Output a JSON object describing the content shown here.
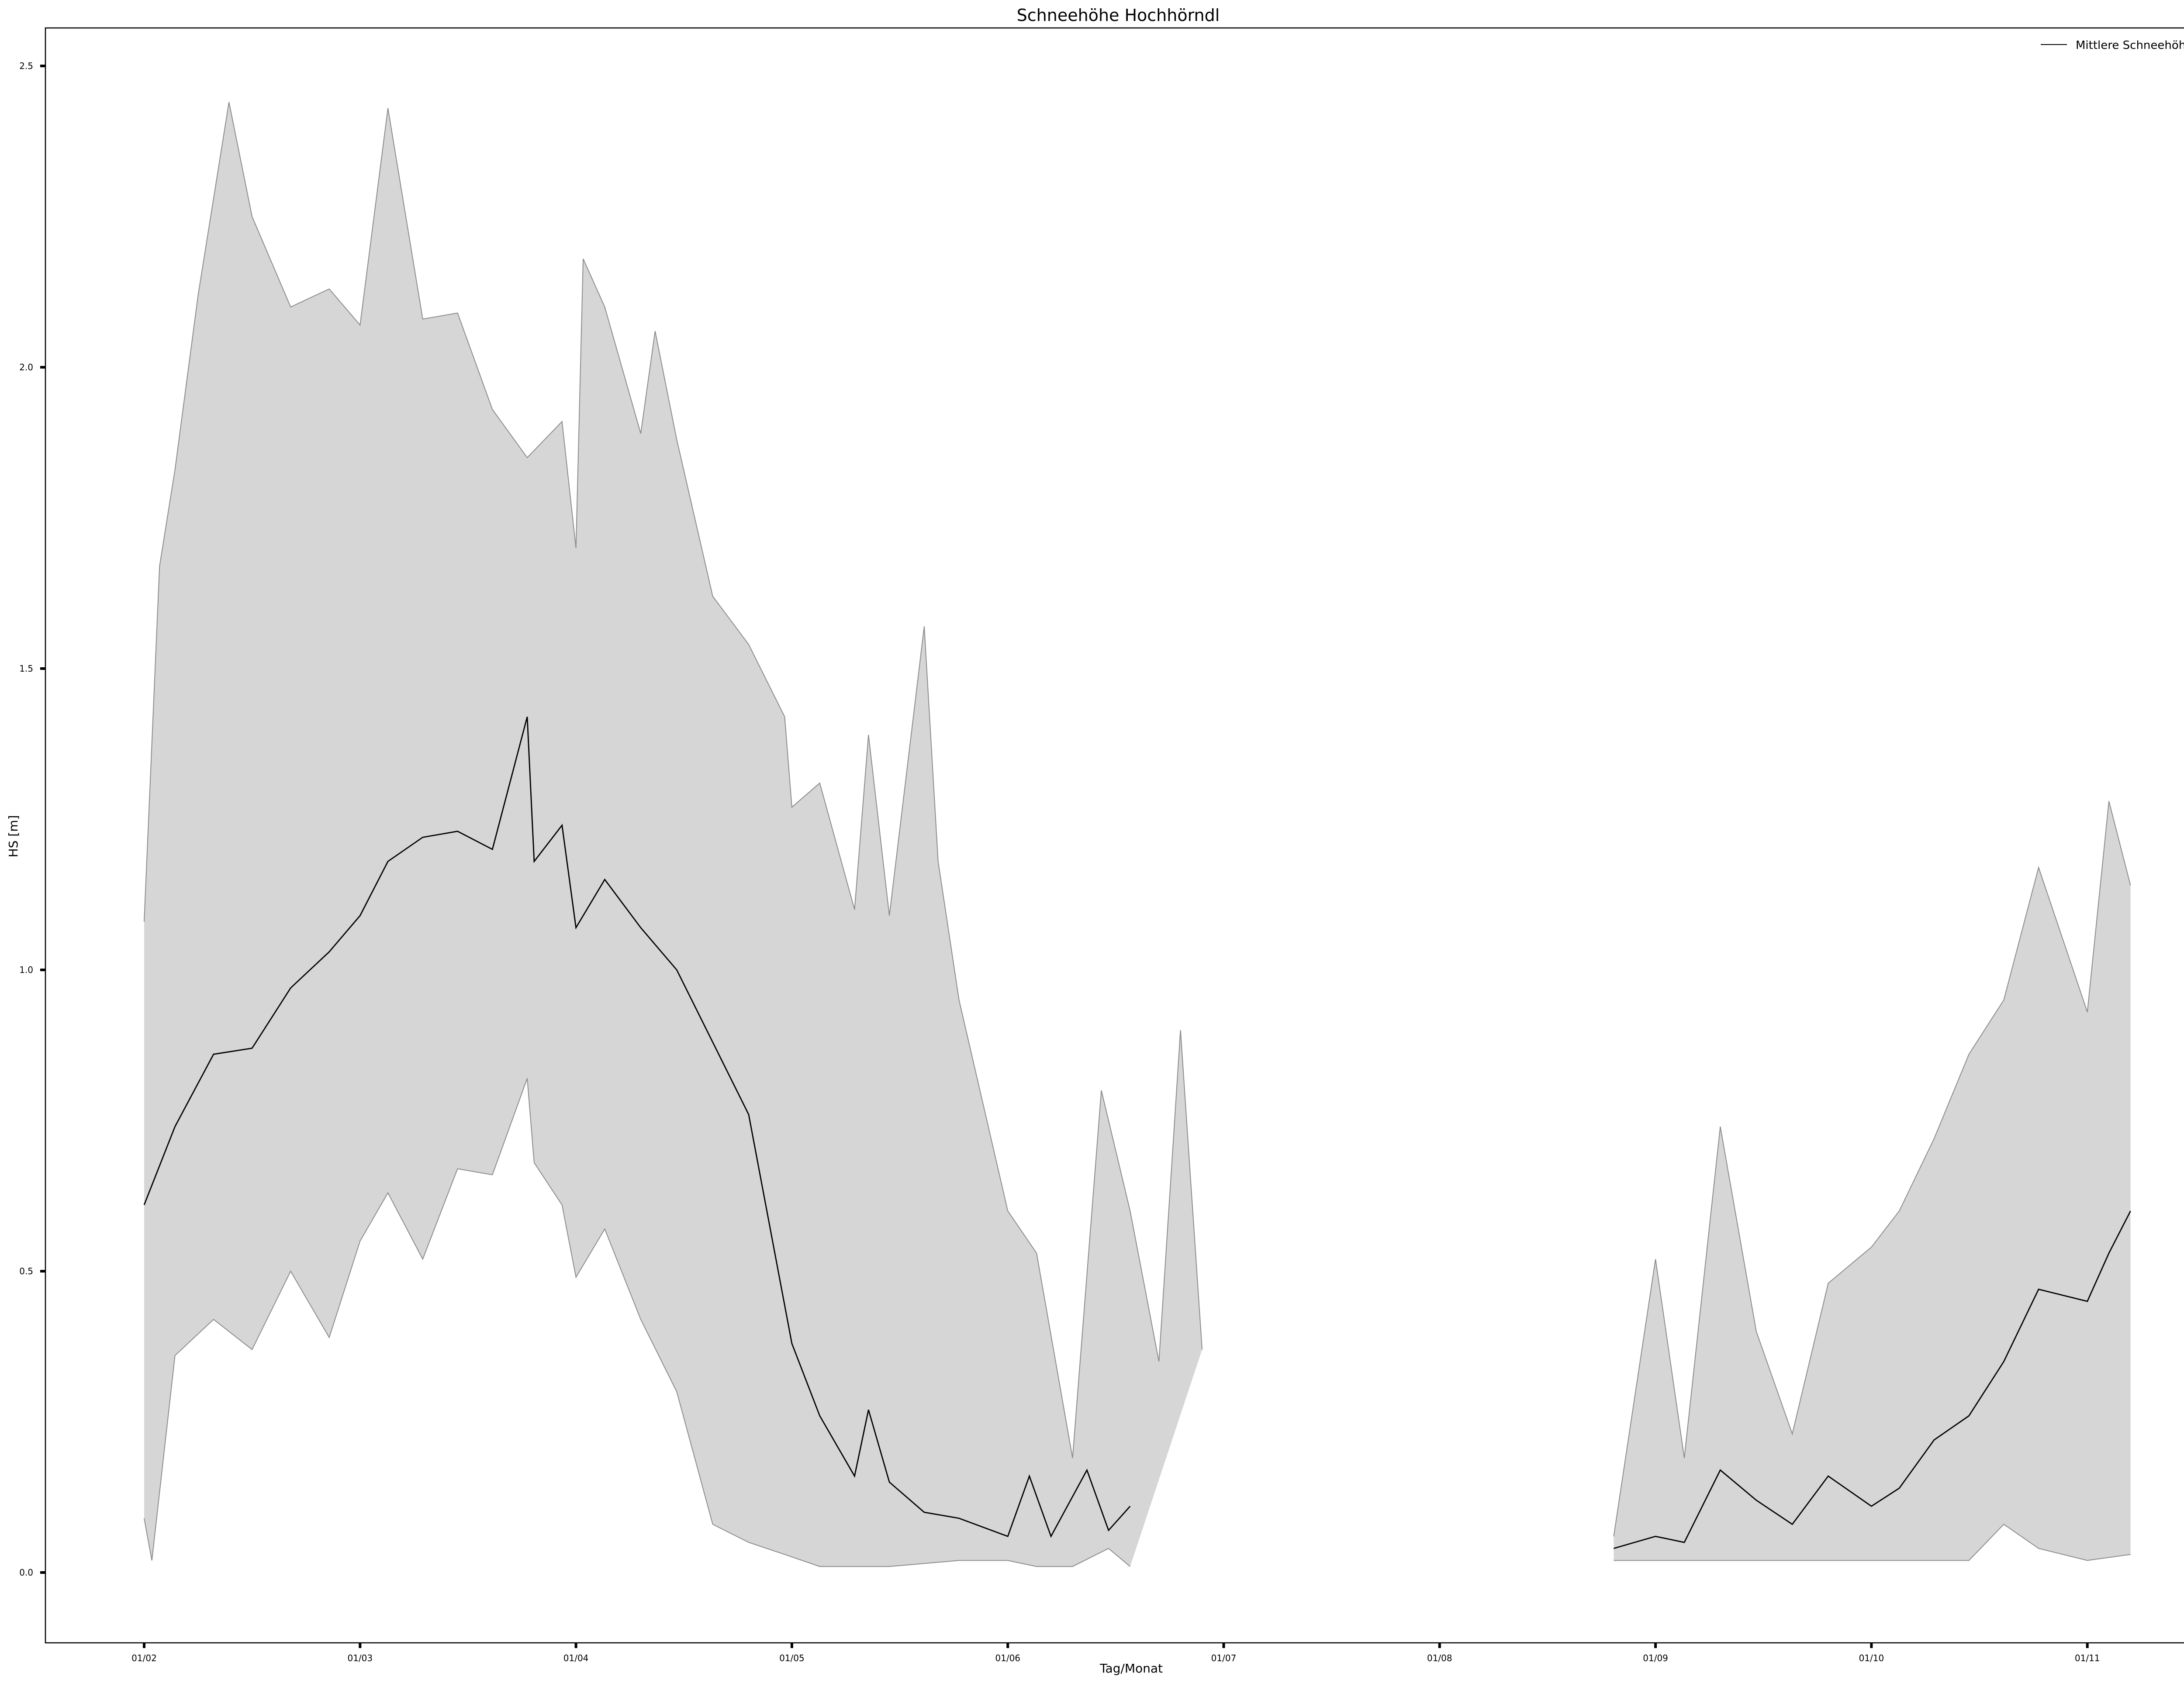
{
  "chart_data": {
    "type": "area",
    "title": "Schneehöhe  Hochhörndl",
    "xlabel": "Tag/Monat",
    "ylabel": "HS [m]",
    "ylim": [
      -0.12,
      2.6
    ],
    "xlim": [
      "01/01",
      "18/11"
    ],
    "x_ticks": [
      "01/02",
      "01/03",
      "01/04",
      "01/05",
      "01/06",
      "01/07",
      "01/08",
      "01/09",
      "01/10",
      "01/11"
    ],
    "y_ticks": [
      "0.0",
      "0.5",
      "1.0",
      "1.5",
      "2.0",
      "2.5"
    ],
    "legend": {
      "entries": [
        "Mittlere Schneehöhe"
      ],
      "position": "top-right"
    },
    "grid": false,
    "colors": {
      "mean_line": "#000000",
      "band_fill": "#d6d6d6",
      "band_edge": "#8c8c8c"
    },
    "series": [
      {
        "name": "Mittlere Schneehöhe",
        "role": "mean",
        "points": [
          [
            "01/02",
            0.61
          ],
          [
            "05/02",
            0.74
          ],
          [
            "10/02",
            0.86
          ],
          [
            "15/02",
            0.87
          ],
          [
            "20/02",
            0.97
          ],
          [
            "25/02",
            1.03
          ],
          [
            "01/03",
            1.09
          ],
          [
            "05/03",
            1.18
          ],
          [
            "10/03",
            1.22
          ],
          [
            "15/03",
            1.23
          ],
          [
            "20/03",
            1.2
          ],
          [
            "25/03",
            1.42
          ],
          [
            "26/03",
            1.18
          ],
          [
            "30/03",
            1.24
          ],
          [
            "01/04",
            1.07
          ],
          [
            "05/04",
            1.15
          ],
          [
            "10/04",
            1.07
          ],
          [
            "15/04",
            1.0
          ],
          [
            "20/04",
            0.88
          ],
          [
            "25/04",
            0.76
          ],
          [
            "01/05",
            0.38
          ],
          [
            "05/05",
            0.26
          ],
          [
            "10/05",
            0.16
          ],
          [
            "12/05",
            0.27
          ],
          [
            "15/05",
            0.15
          ],
          [
            "20/05",
            0.1
          ],
          [
            "25/05",
            0.09
          ],
          [
            "01/06",
            0.06
          ],
          [
            "04/06",
            0.16
          ],
          [
            "07/06",
            0.06
          ],
          [
            "12/06",
            0.17
          ],
          [
            "15/06",
            0.07
          ],
          [
            "18/06",
            0.11
          ],
          [
            "26/08",
            0.04
          ],
          [
            "01/09",
            0.06
          ],
          [
            "05/09",
            0.05
          ],
          [
            "10/09",
            0.17
          ],
          [
            "15/09",
            0.12
          ],
          [
            "20/09",
            0.08
          ],
          [
            "25/09",
            0.16
          ],
          [
            "01/10",
            0.11
          ],
          [
            "05/10",
            0.14
          ],
          [
            "10/10",
            0.22
          ],
          [
            "15/10",
            0.26
          ],
          [
            "20/10",
            0.35
          ],
          [
            "25/10",
            0.47
          ],
          [
            "01/11",
            0.45
          ],
          [
            "04/11",
            0.53
          ],
          [
            "07/11",
            0.6
          ]
        ]
      },
      {
        "name": "",
        "role": "band_upper",
        "points": [
          [
            "01/02",
            1.08
          ],
          [
            "03/02",
            1.67
          ],
          [
            "05/02",
            1.83
          ],
          [
            "08/02",
            2.12
          ],
          [
            "12/02",
            2.44
          ],
          [
            "15/02",
            2.25
          ],
          [
            "20/02",
            2.1
          ],
          [
            "25/02",
            2.13
          ],
          [
            "01/03",
            2.07
          ],
          [
            "05/03",
            2.43
          ],
          [
            "10/03",
            2.08
          ],
          [
            "15/03",
            2.09
          ],
          [
            "20/03",
            1.93
          ],
          [
            "25/03",
            1.85
          ],
          [
            "30/03",
            1.91
          ],
          [
            "01/04",
            1.7
          ],
          [
            "02/04",
            2.18
          ],
          [
            "05/04",
            2.1
          ],
          [
            "10/04",
            1.89
          ],
          [
            "12/04",
            2.06
          ],
          [
            "15/04",
            1.88
          ],
          [
            "20/04",
            1.62
          ],
          [
            "25/04",
            1.54
          ],
          [
            "30/04",
            1.42
          ],
          [
            "01/05",
            1.27
          ],
          [
            "05/05",
            1.31
          ],
          [
            "10/05",
            1.1
          ],
          [
            "12/05",
            1.39
          ],
          [
            "15/05",
            1.09
          ],
          [
            "20/05",
            1.57
          ],
          [
            "22/05",
            1.18
          ],
          [
            "25/05",
            0.95
          ],
          [
            "01/06",
            0.6
          ],
          [
            "05/06",
            0.53
          ],
          [
            "10/06",
            0.19
          ],
          [
            "14/06",
            0.8
          ],
          [
            "18/06",
            0.6
          ],
          [
            "22/06",
            0.35
          ],
          [
            "25/06",
            0.9
          ],
          [
            "28/06",
            0.37
          ],
          [
            "26/08",
            0.06
          ],
          [
            "01/09",
            0.52
          ],
          [
            "05/09",
            0.19
          ],
          [
            "10/09",
            0.74
          ],
          [
            "15/09",
            0.4
          ],
          [
            "20/09",
            0.23
          ],
          [
            "25/09",
            0.48
          ],
          [
            "01/10",
            0.54
          ],
          [
            "05/10",
            0.6
          ],
          [
            "10/10",
            0.72
          ],
          [
            "15/10",
            0.86
          ],
          [
            "20/10",
            0.95
          ],
          [
            "25/10",
            1.17
          ],
          [
            "01/11",
            0.93
          ],
          [
            "04/11",
            1.28
          ],
          [
            "07/11",
            1.14
          ]
        ]
      },
      {
        "name": "",
        "role": "band_lower",
        "points": [
          [
            "01/02",
            0.09
          ],
          [
            "02/02",
            0.02
          ],
          [
            "05/02",
            0.36
          ],
          [
            "10/02",
            0.42
          ],
          [
            "15/02",
            0.37
          ],
          [
            "20/02",
            0.5
          ],
          [
            "25/02",
            0.39
          ],
          [
            "01/03",
            0.55
          ],
          [
            "05/03",
            0.63
          ],
          [
            "10/03",
            0.52
          ],
          [
            "15/03",
            0.67
          ],
          [
            "20/03",
            0.66
          ],
          [
            "25/03",
            0.82
          ],
          [
            "26/03",
            0.68
          ],
          [
            "30/03",
            0.61
          ],
          [
            "01/04",
            0.49
          ],
          [
            "05/04",
            0.57
          ],
          [
            "10/04",
            0.42
          ],
          [
            "15/04",
            0.3
          ],
          [
            "20/04",
            0.08
          ],
          [
            "25/04",
            0.05
          ],
          [
            "30/04",
            0.03
          ],
          [
            "05/05",
            0.01
          ],
          [
            "15/05",
            0.01
          ],
          [
            "25/05",
            0.02
          ],
          [
            "01/06",
            0.02
          ],
          [
            "05/06",
            0.01
          ],
          [
            "10/06",
            0.01
          ],
          [
            "15/06",
            0.04
          ],
          [
            "18/06",
            0.01
          ],
          [
            "26/08",
            0.02
          ],
          [
            "01/09",
            0.02
          ],
          [
            "15/09",
            0.02
          ],
          [
            "01/10",
            0.02
          ],
          [
            "15/10",
            0.02
          ],
          [
            "20/10",
            0.08
          ],
          [
            "25/10",
            0.04
          ],
          [
            "01/11",
            0.02
          ],
          [
            "07/11",
            0.03
          ]
        ]
      }
    ]
  }
}
